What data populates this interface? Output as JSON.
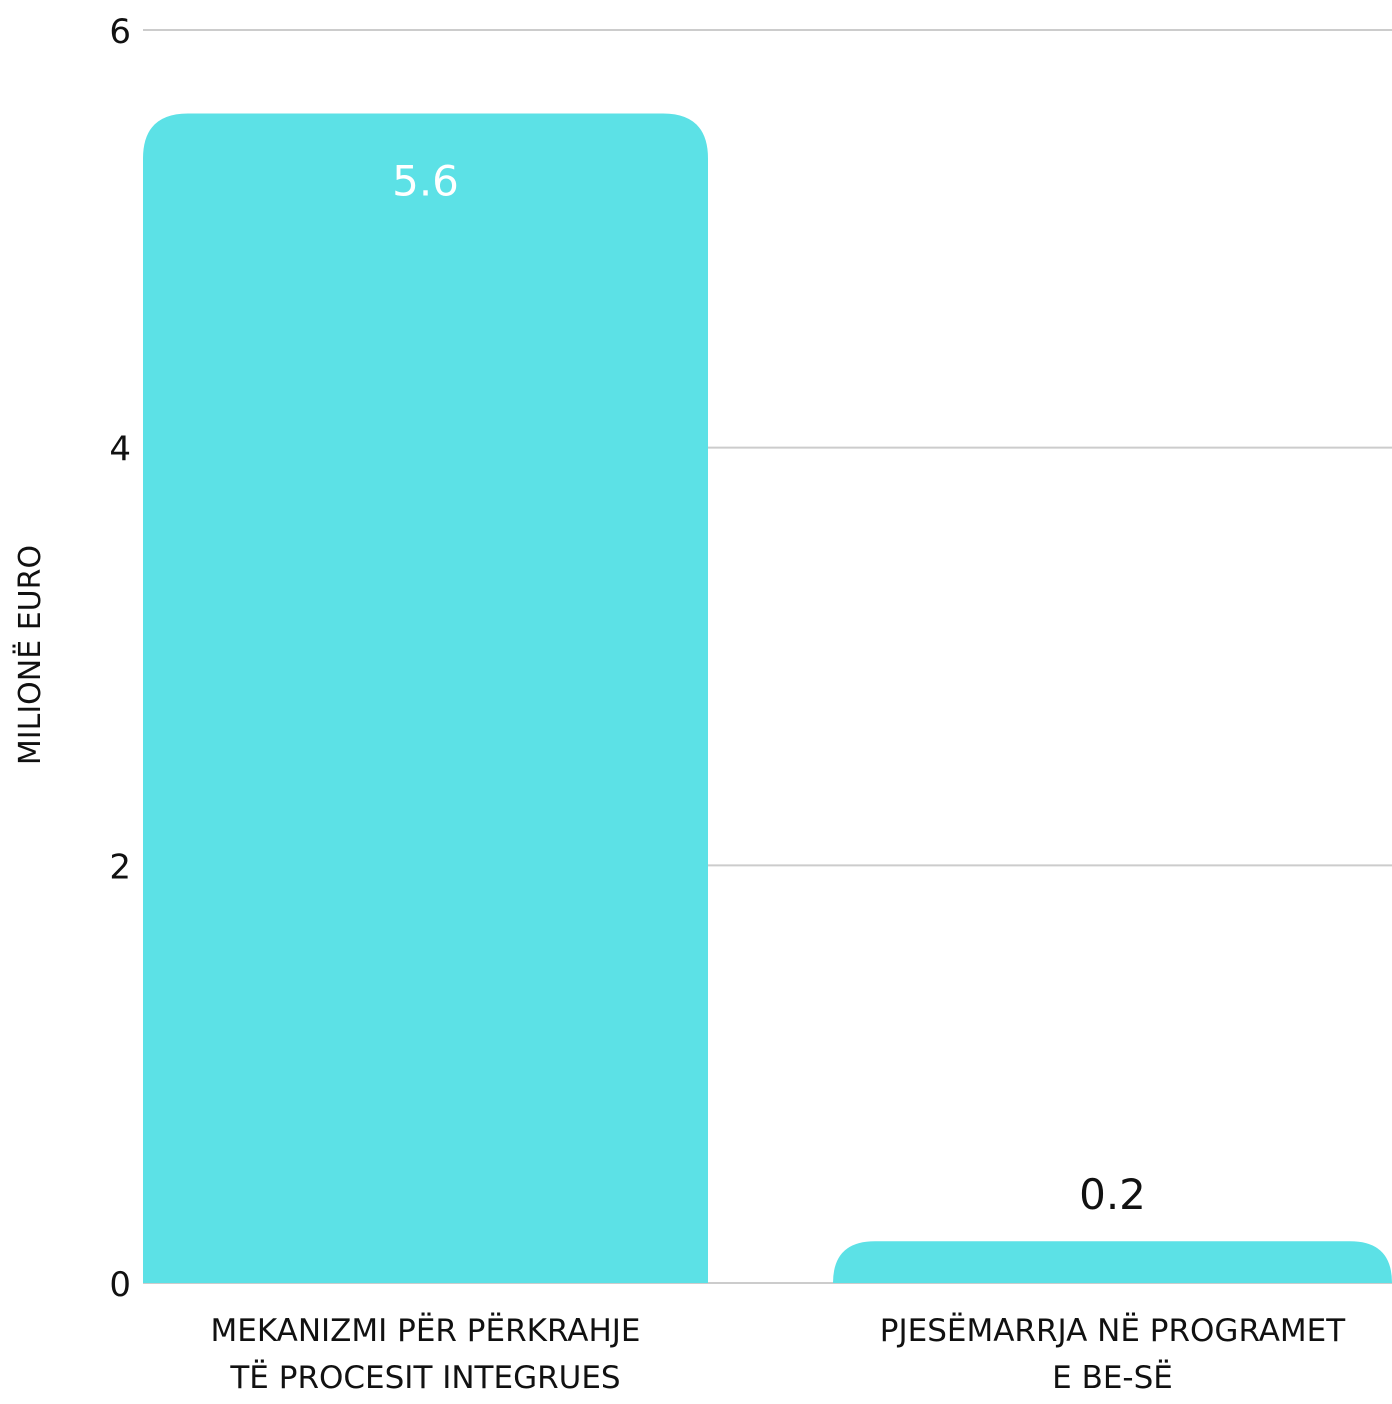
{
  "chart_data": {
    "type": "bar",
    "title": "",
    "xlabel": "",
    "ylabel": "MILIONË EURO",
    "ylim": [
      0,
      6
    ],
    "yticks": [
      "0",
      "2",
      "4",
      "6"
    ],
    "grid": true,
    "categories": [
      [
        "MEKANIZMI PËR PËRKRAHJE",
        "TË PROCESIT INTEGRUES"
      ],
      [
        "PJESËMARRJA NË PROGRAMET",
        "E BE-SË"
      ]
    ],
    "values": [
      5.6,
      0.2
    ],
    "value_labels": [
      "5.6",
      "0.2"
    ],
    "colors": {
      "bar": "#5CE1E6",
      "grid": "#cccccc",
      "text": "#111111",
      "label_inside": "#ffffff"
    }
  }
}
